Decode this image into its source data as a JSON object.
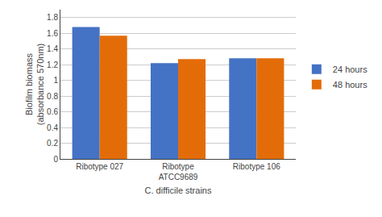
{
  "chart_data": {
    "type": "bar",
    "categories": [
      "Ribotype 027",
      "Ribotype\nATCC9689",
      "Ribotype 106"
    ],
    "series": [
      {
        "name": "24 hours",
        "color": "#4472C4",
        "values": [
          1.68,
          1.22,
          1.28
        ]
      },
      {
        "name": "48 hours",
        "color": "#E36C09",
        "values": [
          1.57,
          1.27,
          1.28
        ]
      }
    ],
    "xlabel": "C. difficile strains",
    "ylabel": "Biofilm biomass\n(absorbance 570nm)",
    "ylim": [
      0,
      1.9
    ],
    "yticks": [
      0,
      0.2,
      0.4,
      0.6,
      0.8,
      1,
      1.2,
      1.4,
      1.6,
      1.8
    ],
    "grid": true,
    "legend": "right"
  }
}
